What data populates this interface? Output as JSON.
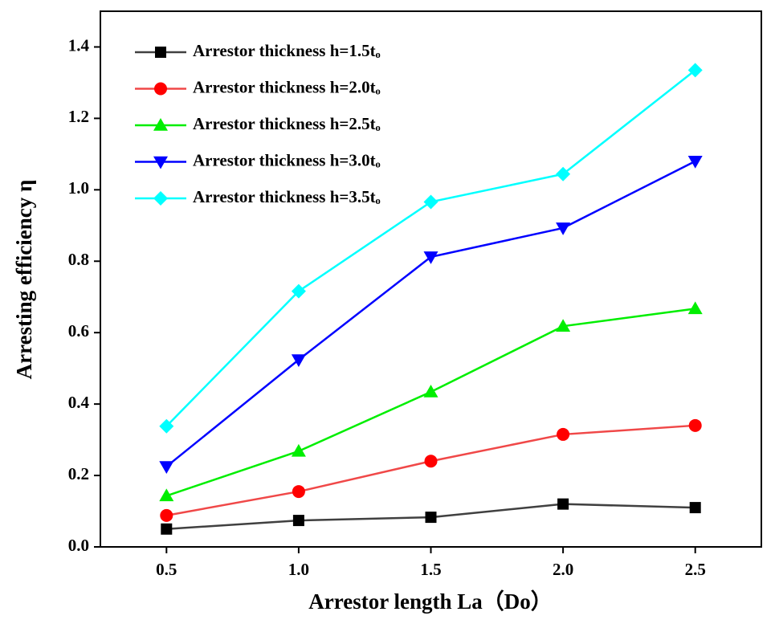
{
  "chart_data": {
    "type": "line",
    "x_label": "Arrestor length La（Do）",
    "y_label": "Arresting efficiency η",
    "x": [
      0.5,
      1.0,
      1.5,
      2.0,
      2.5
    ],
    "xlim": [
      0.25,
      2.75
    ],
    "xticks": [
      0.5,
      {
        "value": 1,
        "label": "1.0"
      },
      1.5,
      {
        "value": 2,
        "label": "2.0"
      },
      2.5
    ],
    "ylim": [
      0,
      1.5
    ],
    "yticks": [
      {
        "value": 0,
        "label": "0.0"
      },
      0.2,
      0.4,
      0.6,
      0.8,
      {
        "value": 1,
        "label": "1.0"
      },
      1.2,
      1.4
    ],
    "legend": "upper left",
    "series": [
      {
        "name": "Arrestor thickness h=1.5tₒ",
        "color": "#000000",
        "line_color": "#404040",
        "marker": "square",
        "values": [
          0.05,
          0.074,
          0.083,
          0.12,
          0.11
        ]
      },
      {
        "name": "Arrestor thickness h=2.0tₒ",
        "color": "#ff0000",
        "line_color": "#f04848",
        "marker": "circle",
        "values": [
          0.088,
          0.155,
          0.24,
          0.315,
          0.34
        ]
      },
      {
        "name": "Arrestor thickness h=2.5tₒ",
        "color": "#00ee00",
        "line_color": "#00ee00",
        "marker": "triangle-up",
        "values": [
          0.143,
          0.268,
          0.434,
          0.618,
          0.667
        ]
      },
      {
        "name": "Arrestor thickness h=3.0tₒ",
        "color": "#0000ff",
        "line_color": "#0000ff",
        "marker": "triangle-down",
        "values": [
          0.225,
          0.524,
          0.812,
          0.893,
          1.08
        ]
      },
      {
        "name": "Arrestor thickness h=3.5tₒ",
        "color": "#00ffff",
        "line_color": "#00ffff",
        "marker": "diamond",
        "values": [
          0.338,
          0.716,
          0.966,
          1.044,
          1.335
        ]
      }
    ]
  }
}
